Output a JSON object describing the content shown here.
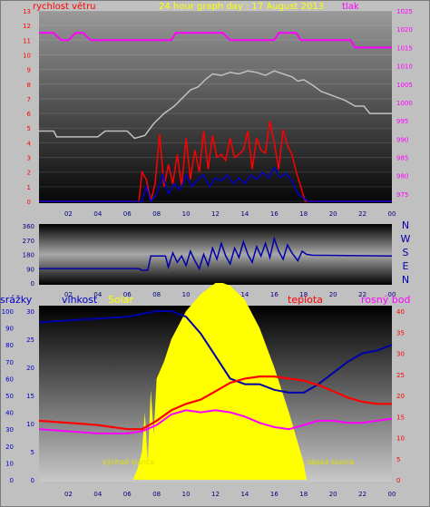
{
  "chart_data": [
    {
      "type": "line",
      "title": "24 hour graph day : 17 August 2013",
      "left_axis_label": "rychlost větru",
      "right_axis_label": "tlak",
      "x_ticks": [
        "02",
        "04",
        "06",
        "08",
        "10",
        "12",
        "14",
        "16",
        "18",
        "20",
        "22",
        "00"
      ],
      "left_ticks": [
        0,
        1,
        2,
        3,
        4,
        5,
        6,
        7,
        8,
        9,
        10,
        11,
        12,
        13
      ],
      "right_ticks": [
        975,
        980,
        985,
        990,
        995,
        1000,
        1005,
        1010,
        1015,
        1020,
        1025
      ],
      "ylim_left": [
        0,
        13
      ],
      "ylim_right": [
        973,
        1025
      ],
      "series": [
        {
          "color": "#ff00ff",
          "axis": "right",
          "values": [
            [
              0,
              1019
            ],
            [
              1,
              1019
            ],
            [
              1.5,
              1017
            ],
            [
              2,
              1017
            ],
            [
              2.5,
              1019
            ],
            [
              3,
              1019
            ],
            [
              3.5,
              1017
            ],
            [
              9,
              1017
            ],
            [
              9.3,
              1019
            ],
            [
              12.5,
              1019
            ],
            [
              13,
              1017
            ],
            [
              16,
              1017
            ],
            [
              16.3,
              1019
            ],
            [
              17.5,
              1019
            ],
            [
              17.8,
              1017
            ],
            [
              21.2,
              1017
            ],
            [
              21.5,
              1015
            ],
            [
              24,
              1015
            ]
          ]
        },
        {
          "color": "#c0c0c0",
          "axis": "left",
          "values": [
            [
              0,
              4.8
            ],
            [
              1,
              4.8
            ],
            [
              1.2,
              4.4
            ],
            [
              4,
              4.4
            ],
            [
              4.5,
              4.8
            ],
            [
              6,
              4.8
            ],
            [
              6.5,
              4.3
            ],
            [
              7.2,
              4.5
            ],
            [
              7.8,
              5.3
            ],
            [
              8.5,
              6
            ],
            [
              9.2,
              6.5
            ],
            [
              9.8,
              7.1
            ],
            [
              10.3,
              7.6
            ],
            [
              10.8,
              7.8
            ],
            [
              11.3,
              8.3
            ],
            [
              11.8,
              8.7
            ],
            [
              12.4,
              8.6
            ],
            [
              13,
              8.8
            ],
            [
              13.6,
              8.7
            ],
            [
              14.2,
              8.9
            ],
            [
              14.8,
              8.8
            ],
            [
              15.4,
              8.6
            ],
            [
              16,
              8.9
            ],
            [
              16.6,
              8.7
            ],
            [
              17.2,
              8.5
            ],
            [
              17.6,
              8.2
            ],
            [
              18,
              8.3
            ],
            [
              18.5,
              8
            ],
            [
              19.2,
              7.5
            ],
            [
              20,
              7.2
            ],
            [
              20.8,
              6.9
            ],
            [
              21.5,
              6.5
            ],
            [
              22.1,
              6.5
            ],
            [
              22.5,
              6
            ],
            [
              23.3,
              6
            ],
            [
              24,
              6
            ]
          ]
        },
        {
          "color": "#ff0000",
          "axis": "left",
          "values": [
            [
              0,
              0
            ],
            [
              6.8,
              0
            ],
            [
              7,
              2
            ],
            [
              7.3,
              1.5
            ],
            [
              7.6,
              0
            ],
            [
              7.9,
              1.2
            ],
            [
              8.2,
              4.6
            ],
            [
              8.5,
              1
            ],
            [
              8.8,
              2.5
            ],
            [
              9.1,
              1.2
            ],
            [
              9.4,
              3.2
            ],
            [
              9.7,
              1
            ],
            [
              10,
              4.3
            ],
            [
              10.3,
              1.5
            ],
            [
              10.6,
              3.5
            ],
            [
              10.9,
              2
            ],
            [
              11.2,
              4.8
            ],
            [
              11.5,
              2.2
            ],
            [
              11.8,
              4.5
            ],
            [
              12.1,
              3
            ],
            [
              12.4,
              3.2
            ],
            [
              12.7,
              2.8
            ],
            [
              13,
              4.3
            ],
            [
              13.3,
              3
            ],
            [
              13.6,
              3.2
            ],
            [
              13.9,
              3.5
            ],
            [
              14.2,
              4.8
            ],
            [
              14.5,
              2.2
            ],
            [
              14.8,
              4.3
            ],
            [
              15.1,
              3.5
            ],
            [
              15.4,
              3.3
            ],
            [
              15.7,
              5.5
            ],
            [
              16,
              4
            ],
            [
              16.3,
              2.2
            ],
            [
              16.6,
              4.9
            ],
            [
              16.9,
              3.8
            ],
            [
              17.2,
              3.2
            ],
            [
              17.5,
              2
            ],
            [
              17.8,
              1
            ],
            [
              18.1,
              0
            ],
            [
              24,
              0
            ]
          ]
        },
        {
          "color": "#0000cc",
          "axis": "left",
          "values": [
            [
              0,
              0
            ],
            [
              7,
              0
            ],
            [
              7.3,
              1
            ],
            [
              7.6,
              0
            ],
            [
              8,
              0.5
            ],
            [
              8.4,
              1.8
            ],
            [
              8.8,
              0.5
            ],
            [
              9.2,
              1.2
            ],
            [
              9.6,
              0.8
            ],
            [
              10,
              1.8
            ],
            [
              10.4,
              1
            ],
            [
              10.8,
              1.5
            ],
            [
              11.2,
              1.8
            ],
            [
              11.6,
              1
            ],
            [
              12,
              1.6
            ],
            [
              12.4,
              1.4
            ],
            [
              12.8,
              1.8
            ],
            [
              13.2,
              1.2
            ],
            [
              13.6,
              1.6
            ],
            [
              14,
              1.2
            ],
            [
              14.4,
              1.8
            ],
            [
              14.8,
              1.5
            ],
            [
              15.2,
              2
            ],
            [
              15.6,
              1.6
            ],
            [
              16,
              2.3
            ],
            [
              16.4,
              1.6
            ],
            [
              16.8,
              1.9
            ],
            [
              17.2,
              1.4
            ],
            [
              17.6,
              0.5
            ],
            [
              18,
              0.2
            ],
            [
              18.3,
              0
            ],
            [
              24,
              0
            ]
          ]
        }
      ]
    },
    {
      "type": "line",
      "right_letters": [
        "N",
        "W",
        "S",
        "E",
        "N"
      ],
      "left_ticks": [
        0,
        90,
        180,
        270,
        360
      ],
      "x_ticks": [
        "02",
        "04",
        "06",
        "08",
        "10",
        "12",
        "14",
        "16",
        "18",
        "20",
        "22",
        "00"
      ],
      "ylim": [
        0,
        360
      ],
      "series": [
        {
          "color": "#0000aa",
          "values": [
            [
              0,
              90
            ],
            [
              6.8,
              90
            ],
            [
              7,
              80
            ],
            [
              7.4,
              80
            ],
            [
              7.6,
              170
            ],
            [
              8.6,
              170
            ],
            [
              8.8,
              100
            ],
            [
              9.1,
              190
            ],
            [
              9.4,
              130
            ],
            [
              9.7,
              170
            ],
            [
              10,
              110
            ],
            [
              10.3,
              200
            ],
            [
              10.6,
              140
            ],
            [
              10.9,
              90
            ],
            [
              11.2,
              180
            ],
            [
              11.5,
              110
            ],
            [
              11.8,
              220
            ],
            [
              12.1,
              150
            ],
            [
              12.4,
              250
            ],
            [
              12.7,
              170
            ],
            [
              13,
              120
            ],
            [
              13.3,
              220
            ],
            [
              13.6,
              160
            ],
            [
              13.9,
              260
            ],
            [
              14.2,
              180
            ],
            [
              14.5,
              130
            ],
            [
              14.8,
              230
            ],
            [
              15.1,
              170
            ],
            [
              15.4,
              250
            ],
            [
              15.7,
              160
            ],
            [
              16,
              280
            ],
            [
              16.3,
              200
            ],
            [
              16.6,
              150
            ],
            [
              16.9,
              240
            ],
            [
              17.2,
              190
            ],
            [
              17.6,
              140
            ],
            [
              17.9,
              200
            ],
            [
              18.2,
              180
            ],
            [
              18.6,
              175
            ],
            [
              24,
              170
            ]
          ]
        }
      ]
    },
    {
      "type": "line",
      "header_labels": [
        "srážky",
        "vlhkost",
        "Solar",
        "teplota",
        "rosný bod"
      ],
      "sunrise_label": "východ slunce",
      "sunset_label": "západ slunce",
      "rain_ticks": [
        0,
        10,
        20,
        30,
        40,
        50,
        60,
        70,
        80,
        90,
        100
      ],
      "humidity_ticks": [
        0,
        5,
        10,
        15,
        20,
        25,
        30
      ],
      "temp_ticks": [
        0,
        5,
        10,
        15,
        20,
        25,
        30,
        35,
        40
      ],
      "x_ticks": [
        "02",
        "04",
        "06",
        "08",
        "10",
        "12",
        "14",
        "16",
        "18",
        "20",
        "22",
        "00"
      ],
      "ylim_humidity": [
        0,
        30
      ],
      "ylim_temp": [
        0,
        40
      ],
      "series": [
        {
          "name": "Solar",
          "color": "#ffff00",
          "values": [
            [
              6.4,
              0
            ],
            [
              6.7,
              2
            ],
            [
              7,
              5
            ],
            [
              7.2,
              12
            ],
            [
              7.4,
              3
            ],
            [
              7.6,
              16
            ],
            [
              7.8,
              8
            ],
            [
              8,
              18
            ],
            [
              8.5,
              21
            ],
            [
              9,
              25
            ],
            [
              10,
              30
            ],
            [
              11,
              33
            ],
            [
              12,
              35
            ],
            [
              12.5,
              35
            ],
            [
              13,
              34.5
            ],
            [
              14,
              32
            ],
            [
              15,
              27
            ],
            [
              16,
              20
            ],
            [
              17,
              12
            ],
            [
              18,
              3
            ],
            [
              18.2,
              0
            ]
          ]
        },
        {
          "name": "vlhkost",
          "color": "#0000aa",
          "values": [
            [
              0,
              28
            ],
            [
              3,
              28.5
            ],
            [
              6,
              29
            ],
            [
              7,
              29.5
            ],
            [
              8,
              30
            ],
            [
              9,
              30
            ],
            [
              10,
              29
            ],
            [
              11,
              26
            ],
            [
              12,
              22
            ],
            [
              13,
              18
            ],
            [
              14,
              17
            ],
            [
              15,
              17
            ],
            [
              16,
              16
            ],
            [
              17,
              15.5
            ],
            [
              18,
              15.5
            ],
            [
              19,
              17
            ],
            [
              20,
              19
            ],
            [
              21,
              21
            ],
            [
              22,
              22.5
            ],
            [
              23,
              23
            ],
            [
              24,
              24
            ]
          ]
        },
        {
          "name": "teplota",
          "color": "#ff0000",
          "values": [
            [
              0,
              14
            ],
            [
              2,
              13.5
            ],
            [
              4,
              13
            ],
            [
              6,
              12
            ],
            [
              7,
              12
            ],
            [
              8,
              14
            ],
            [
              9,
              16.5
            ],
            [
              10,
              18
            ],
            [
              11,
              19
            ],
            [
              12,
              21
            ],
            [
              13,
              23
            ],
            [
              14,
              24
            ],
            [
              15,
              24.5
            ],
            [
              16,
              24.5
            ],
            [
              17,
              24
            ],
            [
              18,
              23.5
            ],
            [
              19,
              22.5
            ],
            [
              20,
              21
            ],
            [
              21,
              19.5
            ],
            [
              22,
              18.5
            ],
            [
              23,
              18
            ],
            [
              24,
              18
            ]
          ]
        },
        {
          "name": "rosný bod",
          "color": "#ff00ff",
          "values": [
            [
              0,
              12
            ],
            [
              2,
              11.5
            ],
            [
              4,
              11
            ],
            [
              6,
              11
            ],
            [
              7,
              11.5
            ],
            [
              8,
              13
            ],
            [
              9,
              15.5
            ],
            [
              10,
              16.5
            ],
            [
              11,
              16
            ],
            [
              12,
              16.5
            ],
            [
              13,
              16
            ],
            [
              14,
              15
            ],
            [
              15,
              13.5
            ],
            [
              16,
              12.5
            ],
            [
              17,
              12
            ],
            [
              17.5,
              12.5
            ],
            [
              18,
              13
            ],
            [
              19,
              14
            ],
            [
              20,
              14
            ],
            [
              21,
              13.5
            ],
            [
              22,
              13.5
            ],
            [
              23,
              14
            ],
            [
              24,
              14.5
            ]
          ]
        }
      ]
    }
  ]
}
